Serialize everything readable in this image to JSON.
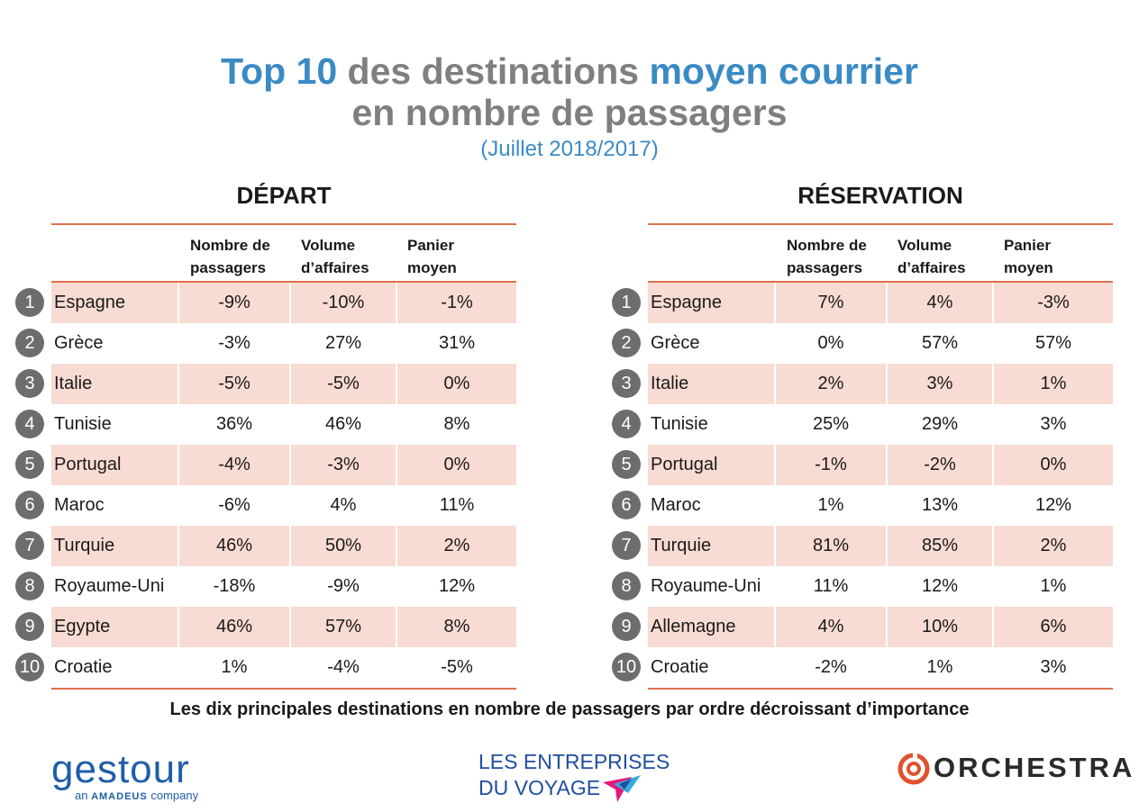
{
  "title": {
    "line1_part1": "Top 10",
    "line1_part2": " des destinations ",
    "line1_part3": "moyen courrier",
    "line2": "en nombre de passagers",
    "subtitle": "(Juillet 2018/2017)"
  },
  "headers": {
    "col1": "Nombre de passagers",
    "col2": "Volume d’affaires",
    "col3": "Panier moyen"
  },
  "depart": {
    "title": "DÉPART",
    "rows": [
      {
        "rank": "1",
        "name": "Espagne",
        "v1": "-9%",
        "v2": "-10%",
        "v3": "-1%"
      },
      {
        "rank": "2",
        "name": "Grèce",
        "v1": "-3%",
        "v2": "27%",
        "v3": "31%"
      },
      {
        "rank": "3",
        "name": "Italie",
        "v1": "-5%",
        "v2": "-5%",
        "v3": "0%"
      },
      {
        "rank": "4",
        "name": "Tunisie",
        "v1": "36%",
        "v2": "46%",
        "v3": "8%"
      },
      {
        "rank": "5",
        "name": "Portugal",
        "v1": "-4%",
        "v2": "-3%",
        "v3": "0%"
      },
      {
        "rank": "6",
        "name": "Maroc",
        "v1": "-6%",
        "v2": "4%",
        "v3": "11%"
      },
      {
        "rank": "7",
        "name": "Turquie",
        "v1": "46%",
        "v2": "50%",
        "v3": "2%"
      },
      {
        "rank": "8",
        "name": "Royaume-Uni",
        "v1": "-18%",
        "v2": "-9%",
        "v3": "12%"
      },
      {
        "rank": "9",
        "name": "Egypte",
        "v1": "46%",
        "v2": "57%",
        "v3": "8%"
      },
      {
        "rank": "10",
        "name": "Croatie",
        "v1": "1%",
        "v2": "-4%",
        "v3": "-5%"
      }
    ]
  },
  "reservation": {
    "title": "RÉSERVATION",
    "rows": [
      {
        "rank": "1",
        "name": "Espagne",
        "v1": "7%",
        "v2": "4%",
        "v3": "-3%"
      },
      {
        "rank": "2",
        "name": "Grèce",
        "v1": "0%",
        "v2": "57%",
        "v3": "57%"
      },
      {
        "rank": "3",
        "name": "Italie",
        "v1": "2%",
        "v2": "3%",
        "v3": "1%"
      },
      {
        "rank": "4",
        "name": "Tunisie",
        "v1": "25%",
        "v2": "29%",
        "v3": "3%"
      },
      {
        "rank": "5",
        "name": "Portugal",
        "v1": "-1%",
        "v2": "-2%",
        "v3": "0%"
      },
      {
        "rank": "6",
        "name": "Maroc",
        "v1": "1%",
        "v2": "13%",
        "v3": "12%"
      },
      {
        "rank": "7",
        "name": "Turquie",
        "v1": "81%",
        "v2": "85%",
        "v3": "2%"
      },
      {
        "rank": "8",
        "name": "Royaume-Uni",
        "v1": "11%",
        "v2": "12%",
        "v3": "1%"
      },
      {
        "rank": "9",
        "name": "Allemagne",
        "v1": "4%",
        "v2": "10%",
        "v3": "6%"
      },
      {
        "rank": "10",
        "name": "Croatie",
        "v1": "-2%",
        "v2": "1%",
        "v3": "3%"
      }
    ]
  },
  "footer": {
    "note": "Les dix principales destinations en nombre de passagers par ordre décroissant d’importance"
  },
  "logos": {
    "gestour": "gestour",
    "gestour_sub_prefix": "an ",
    "gestour_sub_brand": "AMADEUS",
    "gestour_sub_suffix": " company",
    "edv_line1": "LES ENTREPRISES",
    "edv_line2": "DU VOYAGE",
    "orchestra": "ORCHESTRA"
  },
  "colors": {
    "accent_blue": "#3a8ac4",
    "title_gray": "#7f7f7f",
    "rule_orange": "#e0704a",
    "shade_pink": "#f8dbd3",
    "rank_gray": "#6d6d6d"
  }
}
